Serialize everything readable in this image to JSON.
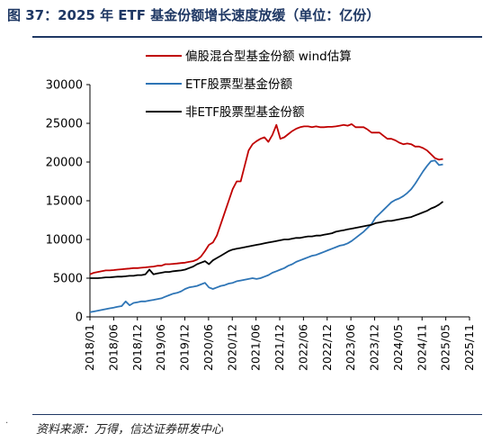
{
  "header": {
    "title": "图 37：2025 年 ETF 基金份额增长速度放缓（单位：亿份）"
  },
  "footer": {
    "source": "资料来源：万得，信达证券研发中心"
  },
  "chart_data": {
    "type": "line",
    "x_ticks": [
      "2018/01",
      "2018/06",
      "2018/12",
      "2019/06",
      "2019/12",
      "2020/06",
      "2020/12",
      "2021/06",
      "2021/12",
      "2022/06",
      "2022/12",
      "2023/06",
      "2023/12",
      "2024/05",
      "2024/11",
      "2025/05",
      "2025/11"
    ],
    "ylim": [
      0,
      30000
    ],
    "y_ticks": [
      0,
      5000,
      10000,
      15000,
      20000,
      25000,
      30000
    ],
    "legend_position": "top",
    "series": [
      {
        "name": "偏股混合型基金份额 wind估算",
        "color": "#c00000",
        "values": [
          5500,
          5700,
          5800,
          5900,
          6000,
          6000,
          6050,
          6100,
          6150,
          6200,
          6250,
          6300,
          6300,
          6350,
          6400,
          6450,
          6500,
          6600,
          6600,
          6800,
          6800,
          6850,
          6900,
          6950,
          7000,
          7100,
          7200,
          7400,
          7800,
          8500,
          9300,
          9600,
          10500,
          12000,
          13500,
          15000,
          16500,
          17500,
          17500,
          19500,
          21500,
          22300,
          22700,
          23000,
          23200,
          22600,
          23500,
          24800,
          23000,
          23200,
          23600,
          24000,
          24300,
          24500,
          24600,
          24600,
          24500,
          24600,
          24500,
          24500,
          24550,
          24550,
          24600,
          24700,
          24800,
          24700,
          24900,
          24500,
          24500,
          24500,
          24200,
          23800,
          23800,
          23800,
          23400,
          23000,
          23000,
          22800,
          22500,
          22300,
          22400,
          22300,
          22000,
          22000,
          21800,
          21500,
          21000,
          20500,
          20300,
          20400
        ]
      },
      {
        "name": "ETF股票型基金份额",
        "color": "#2e75b6",
        "values": [
          600,
          700,
          800,
          900,
          1000,
          1100,
          1200,
          1300,
          1400,
          2000,
          1500,
          1800,
          1900,
          2000,
          2000,
          2100,
          2200,
          2300,
          2400,
          2600,
          2800,
          3000,
          3100,
          3300,
          3600,
          3800,
          3900,
          4000,
          4200,
          4400,
          3800,
          3600,
          3800,
          4000,
          4100,
          4300,
          4400,
          4600,
          4700,
          4800,
          4900,
          5000,
          4900,
          5000,
          5200,
          5400,
          5700,
          5900,
          6100,
          6300,
          6600,
          6800,
          7100,
          7300,
          7500,
          7700,
          7900,
          8000,
          8200,
          8400,
          8600,
          8800,
          9000,
          9200,
          9300,
          9500,
          9800,
          10200,
          10600,
          11000,
          11500,
          12000,
          12800,
          13300,
          13800,
          14300,
          14800,
          15100,
          15300,
          15600,
          16000,
          16500,
          17200,
          18000,
          18800,
          19500,
          20100,
          20200,
          19600,
          19700
        ]
      },
      {
        "name": "非ETF股票型基金份额",
        "color": "#000000",
        "values": [
          5000,
          5000,
          5000,
          5050,
          5100,
          5100,
          5150,
          5200,
          5200,
          5250,
          5300,
          5300,
          5400,
          5400,
          5500,
          6100,
          5500,
          5600,
          5700,
          5800,
          5800,
          5900,
          5950,
          6000,
          6100,
          6300,
          6500,
          6800,
          7000,
          7200,
          6800,
          7300,
          7600,
          7900,
          8200,
          8500,
          8700,
          8800,
          8900,
          9000,
          9100,
          9200,
          9300,
          9400,
          9500,
          9600,
          9700,
          9800,
          9900,
          10000,
          10000,
          10100,
          10200,
          10200,
          10300,
          10400,
          10400,
          10500,
          10500,
          10600,
          10700,
          10800,
          11000,
          11100,
          11200,
          11300,
          11400,
          11500,
          11600,
          11700,
          11800,
          11900,
          12100,
          12200,
          12300,
          12400,
          12400,
          12500,
          12600,
          12700,
          12800,
          12900,
          13100,
          13300,
          13500,
          13700,
          14000,
          14200,
          14500,
          14900
        ]
      }
    ]
  }
}
